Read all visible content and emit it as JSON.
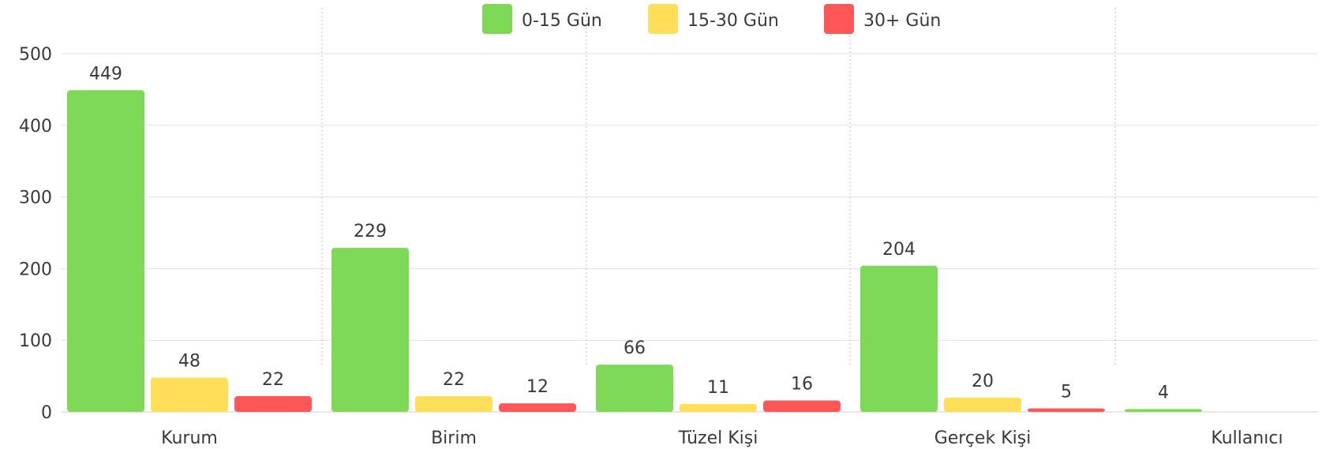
{
  "chart_data": {
    "type": "bar",
    "title": "",
    "xlabel": "",
    "ylabel": "",
    "categories": [
      "Kurum",
      "Birim",
      "Tüzel Kişi",
      "Gerçek Kişi",
      "Kullanıcı"
    ],
    "series": [
      {
        "name": "0-15 Gün",
        "color": "#7ed957",
        "values": [
          449,
          229,
          66,
          204,
          4
        ]
      },
      {
        "name": "15-30 Gün",
        "color": "#ffde59",
        "values": [
          48,
          22,
          11,
          20,
          null
        ]
      },
      {
        "name": "30+ Gün",
        "color": "#ff5757",
        "values": [
          22,
          12,
          16,
          5,
          null
        ]
      }
    ],
    "data_labels": [
      [
        "449",
        "48",
        "22"
      ],
      [
        "229",
        "22",
        "12"
      ],
      [
        "66",
        "11",
        "16"
      ],
      [
        "204",
        "20",
        "5"
      ],
      [
        "4",
        "",
        ""
      ]
    ],
    "ylim": [
      0,
      500
    ],
    "yticks": [
      0,
      100,
      200,
      300,
      400,
      500
    ],
    "ytick_labels": [
      "0",
      "100",
      "200",
      "300",
      "400",
      "500"
    ],
    "grid": true,
    "legend_position": "top-center"
  }
}
